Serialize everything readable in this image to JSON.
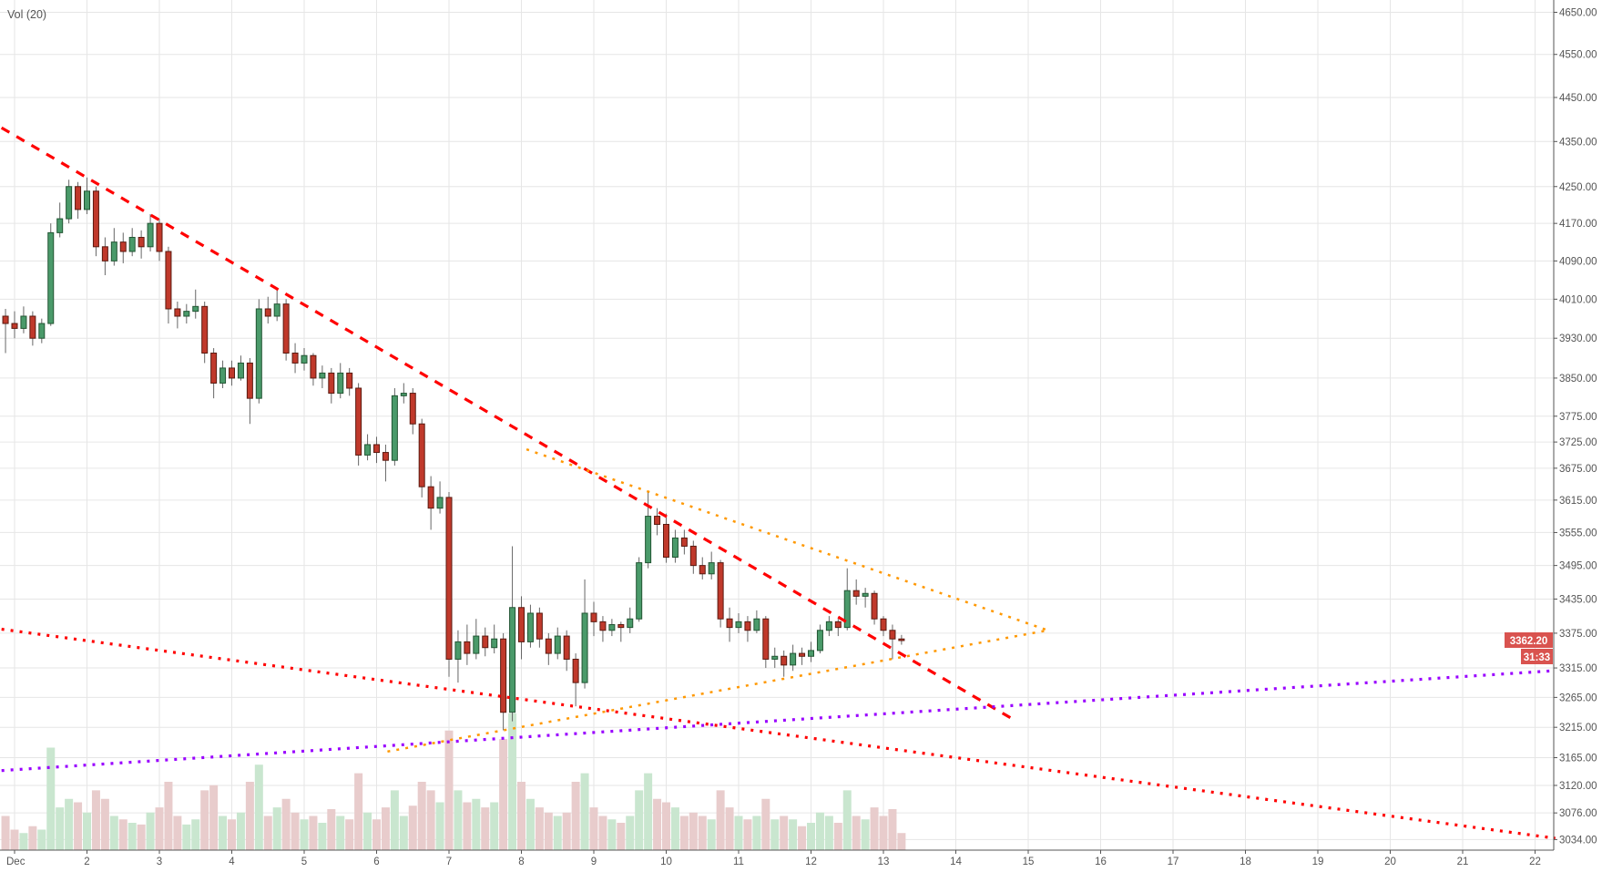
{
  "indicator_label": "Vol (20)",
  "chart_data": {
    "type": "candlestick",
    "title": "",
    "y_scale": "log",
    "grid": true,
    "x_ticks": [
      "Dec",
      "2",
      "3",
      "4",
      "5",
      "6",
      "7",
      "8",
      "9",
      "10",
      "11",
      "12",
      "13",
      "14",
      "15",
      "16",
      "17",
      "18",
      "19",
      "20",
      "21",
      "22"
    ],
    "x_tick_days": [
      1,
      2,
      3,
      4,
      5,
      6,
      7,
      8,
      9,
      10,
      11,
      12,
      13,
      14,
      15,
      16,
      17,
      18,
      19,
      20,
      21,
      22
    ],
    "y_ticks": [
      "4650.00",
      "4550.00",
      "4450.00",
      "4350.00",
      "4250.00",
      "4170.00",
      "4090.00",
      "4010.00",
      "3930.00",
      "3850.00",
      "3775.00",
      "3725.00",
      "3675.00",
      "3615.00",
      "3555.00",
      "3495.00",
      "3435.00",
      "3375.00",
      "3315.00",
      "3265.00",
      "3215.00",
      "3165.00",
      "3120.00",
      "3076.00",
      "3034.00"
    ],
    "ylim": [
      3034,
      4650
    ],
    "xlim_days": [
      0.8,
      22.3
    ],
    "first_candle_day": 0.875,
    "candle_interval_hours": 3,
    "candle_fields": [
      "open",
      "high",
      "low",
      "close",
      "volume"
    ],
    "candles": [
      [
        3975,
        3990,
        3900,
        3960,
        20
      ],
      [
        3960,
        3985,
        3930,
        3950,
        12
      ],
      [
        3950,
        3995,
        3940,
        3975,
        10
      ],
      [
        3975,
        3985,
        3915,
        3930,
        14
      ],
      [
        3930,
        3970,
        3920,
        3960,
        12
      ],
      [
        3960,
        4170,
        3955,
        4150,
        60
      ],
      [
        4150,
        4215,
        4140,
        4180,
        25
      ],
      [
        4180,
        4265,
        4170,
        4250,
        30
      ],
      [
        4250,
        4260,
        4180,
        4200,
        28
      ],
      [
        4200,
        4270,
        4190,
        4240,
        22
      ],
      [
        4240,
        4250,
        4100,
        4120,
        35
      ],
      [
        4120,
        4140,
        4060,
        4090,
        30
      ],
      [
        4090,
        4160,
        4080,
        4130,
        20
      ],
      [
        4130,
        4150,
        4085,
        4110,
        18
      ],
      [
        4110,
        4160,
        4100,
        4140,
        16
      ],
      [
        4140,
        4155,
        4095,
        4120,
        15
      ],
      [
        4120,
        4190,
        4110,
        4170,
        22
      ],
      [
        4170,
        4180,
        4090,
        4110,
        25
      ],
      [
        4110,
        4120,
        3960,
        3990,
        40
      ],
      [
        3990,
        4005,
        3950,
        3975,
        20
      ],
      [
        3975,
        4000,
        3960,
        3985,
        15
      ],
      [
        3985,
        4030,
        3970,
        3995,
        18
      ],
      [
        3995,
        4005,
        3880,
        3900,
        35
      ],
      [
        3900,
        3910,
        3810,
        3840,
        38
      ],
      [
        3840,
        3885,
        3830,
        3870,
        20
      ],
      [
        3870,
        3885,
        3835,
        3850,
        18
      ],
      [
        3850,
        3895,
        3845,
        3880,
        22
      ],
      [
        3880,
        3890,
        3760,
        3810,
        40
      ],
      [
        3810,
        4010,
        3800,
        3990,
        50
      ],
      [
        3990,
        4015,
        3960,
        3975,
        20
      ],
      [
        3975,
        4030,
        3965,
        4000,
        25
      ],
      [
        4000,
        4010,
        3885,
        3900,
        30
      ],
      [
        3900,
        3920,
        3860,
        3880,
        22
      ],
      [
        3880,
        3910,
        3865,
        3895,
        18
      ],
      [
        3895,
        3900,
        3835,
        3850,
        20
      ],
      [
        3850,
        3875,
        3830,
        3860,
        16
      ],
      [
        3860,
        3870,
        3800,
        3820,
        24
      ],
      [
        3820,
        3880,
        3810,
        3860,
        20
      ],
      [
        3860,
        3870,
        3815,
        3830,
        18
      ],
      [
        3830,
        3840,
        3680,
        3700,
        45
      ],
      [
        3700,
        3740,
        3690,
        3720,
        22
      ],
      [
        3720,
        3735,
        3685,
        3705,
        18
      ],
      [
        3705,
        3720,
        3650,
        3690,
        25
      ],
      [
        3690,
        3830,
        3680,
        3815,
        35
      ],
      [
        3815,
        3840,
        3800,
        3820,
        20
      ],
      [
        3820,
        3830,
        3740,
        3760,
        26
      ],
      [
        3760,
        3770,
        3620,
        3640,
        40
      ],
      [
        3640,
        3660,
        3560,
        3600,
        35
      ],
      [
        3600,
        3650,
        3590,
        3620,
        28
      ],
      [
        3620,
        3630,
        3300,
        3330,
        70
      ],
      [
        3330,
        3380,
        3290,
        3360,
        35
      ],
      [
        3360,
        3390,
        3320,
        3340,
        28
      ],
      [
        3340,
        3400,
        3330,
        3370,
        30
      ],
      [
        3370,
        3385,
        3335,
        3350,
        25
      ],
      [
        3350,
        3390,
        3340,
        3365,
        28
      ],
      [
        3365,
        3375,
        3210,
        3240,
        65
      ],
      [
        3240,
        3530,
        3225,
        3420,
        80
      ],
      [
        3420,
        3440,
        3330,
        3360,
        40
      ],
      [
        3360,
        3425,
        3350,
        3410,
        30
      ],
      [
        3410,
        3420,
        3350,
        3365,
        25
      ],
      [
        3365,
        3375,
        3320,
        3340,
        22
      ],
      [
        3340,
        3385,
        3330,
        3370,
        20
      ],
      [
        3370,
        3380,
        3310,
        3330,
        22
      ],
      [
        3330,
        3340,
        3250,
        3290,
        40
      ],
      [
        3290,
        3470,
        3280,
        3410,
        45
      ],
      [
        3410,
        3430,
        3370,
        3395,
        25
      ],
      [
        3395,
        3405,
        3360,
        3380,
        20
      ],
      [
        3380,
        3400,
        3370,
        3390,
        18
      ],
      [
        3390,
        3395,
        3360,
        3385,
        16
      ],
      [
        3385,
        3420,
        3375,
        3400,
        20
      ],
      [
        3400,
        3510,
        3395,
        3500,
        35
      ],
      [
        3500,
        3630,
        3490,
        3585,
        45
      ],
      [
        3585,
        3600,
        3550,
        3570,
        30
      ],
      [
        3570,
        3590,
        3500,
        3510,
        28
      ],
      [
        3510,
        3560,
        3500,
        3545,
        25
      ],
      [
        3545,
        3560,
        3515,
        3530,
        20
      ],
      [
        3530,
        3540,
        3480,
        3495,
        22
      ],
      [
        3495,
        3510,
        3470,
        3480,
        20
      ],
      [
        3480,
        3520,
        3470,
        3500,
        18
      ],
      [
        3500,
        3505,
        3385,
        3400,
        35
      ],
      [
        3400,
        3420,
        3360,
        3385,
        25
      ],
      [
        3385,
        3410,
        3375,
        3395,
        20
      ],
      [
        3395,
        3405,
        3360,
        3380,
        18
      ],
      [
        3380,
        3415,
        3375,
        3400,
        20
      ],
      [
        3400,
        3405,
        3315,
        3330,
        30
      ],
      [
        3330,
        3350,
        3315,
        3335,
        18
      ],
      [
        3335,
        3345,
        3300,
        3320,
        20
      ],
      [
        3320,
        3355,
        3310,
        3340,
        18
      ],
      [
        3340,
        3350,
        3320,
        3335,
        14
      ],
      [
        3335,
        3360,
        3325,
        3345,
        16
      ],
      [
        3345,
        3390,
        3340,
        3380,
        22
      ],
      [
        3380,
        3405,
        3370,
        3395,
        20
      ],
      [
        3395,
        3400,
        3370,
        3385,
        16
      ],
      [
        3385,
        3490,
        3380,
        3450,
        35
      ],
      [
        3450,
        3470,
        3425,
        3440,
        20
      ],
      [
        3440,
        3455,
        3420,
        3445,
        18
      ],
      [
        3445,
        3450,
        3390,
        3400,
        25
      ],
      [
        3400,
        3405,
        3370,
        3380,
        20
      ],
      [
        3380,
        3390,
        3330,
        3365,
        24
      ],
      [
        3365,
        3372,
        3355,
        3362.2,
        10
      ]
    ],
    "trendlines": [
      {
        "style": "dashed",
        "color": "#ff0000",
        "from": [
          0.82,
          4381
        ],
        "to": [
          14.78,
          3229
        ]
      },
      {
        "style": "dotted",
        "color": "#ff0000",
        "from": [
          0.82,
          3382
        ],
        "to": [
          22.28,
          3036
        ]
      },
      {
        "style": "dotted",
        "color": "#9900ff",
        "from": [
          0.82,
          3144
        ],
        "to": [
          22.23,
          3310
        ]
      },
      {
        "style": "dotted",
        "color": "#ff9800",
        "from": [
          8.07,
          3711
        ],
        "to": [
          15.27,
          3380
        ]
      },
      {
        "style": "dotted",
        "color": "#ff9800",
        "from": [
          6.15,
          3175
        ],
        "to": [
          15.27,
          3380
        ]
      }
    ],
    "last_price": "3362.20",
    "countdown": "31:33",
    "colors": {
      "up": "#4a9a6a",
      "down": "#c0392b",
      "up_border": "#225533",
      "down_border": "#5a1a10",
      "wick": "#666666",
      "vol_up": "#c9e6cf",
      "vol_down": "#e8cccc",
      "last_price_bg": "#d9534f",
      "grid": "#e6e6e6"
    }
  }
}
